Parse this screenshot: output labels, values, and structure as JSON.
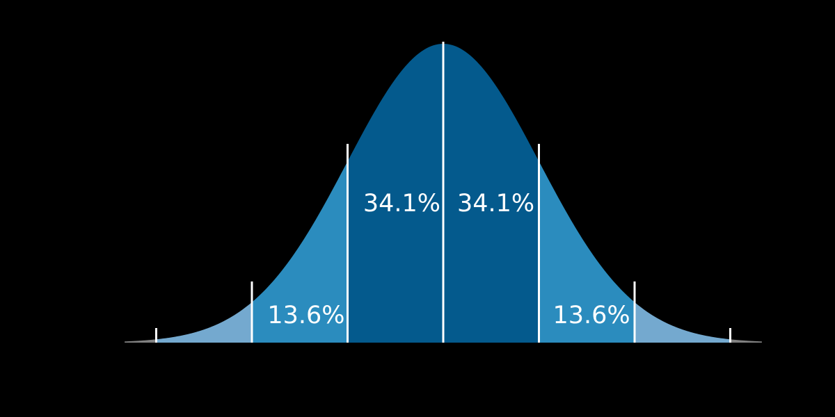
{
  "chart_data": {
    "type": "area",
    "distribution": "normal",
    "x_range_sigma": [
      -3.33,
      3.33
    ],
    "boundaries_sigma": [
      -3,
      -2,
      -1,
      0,
      1,
      2,
      3
    ],
    "grid": false,
    "regions": [
      {
        "from": -3,
        "to": -2,
        "color": "#74a9cf"
      },
      {
        "from": -2,
        "to": -1,
        "color": "#2b8cbe",
        "label": "13.6%"
      },
      {
        "from": -1,
        "to": 0,
        "color": "#045a8d",
        "label": "34.1%"
      },
      {
        "from": 0,
        "to": 1,
        "color": "#045a8d",
        "label": "34.1%"
      },
      {
        "from": 1,
        "to": 2,
        "color": "#2b8cbe",
        "label": "13.6%"
      },
      {
        "from": 2,
        "to": 3,
        "color": "#74a9cf"
      }
    ],
    "tail_color": "#ffffff",
    "background": "#000000"
  }
}
